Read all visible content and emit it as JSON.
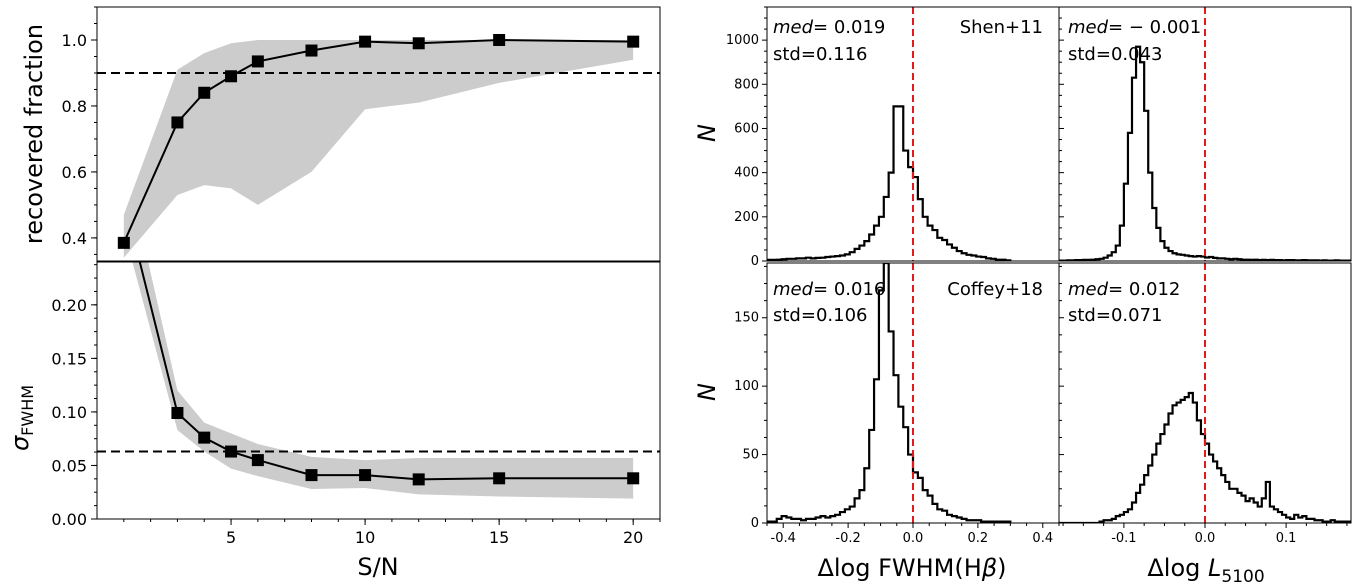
{
  "figure": {
    "left": {
      "xlabel": "S/N",
      "x_ticks": [
        "5",
        "10",
        "15",
        "20"
      ],
      "xlim": [
        0,
        21
      ],
      "top": {
        "ylabel": "recovered fraction",
        "y_ticks": [
          "0.4",
          "0.6",
          "0.8",
          "1.0"
        ],
        "ylim": [
          0.33,
          1.1
        ],
        "ref_line": 0.9
      },
      "bottom": {
        "ylabel_symbol": "σ",
        "ylabel_sub": "FWHM",
        "y_ticks": [
          "0.00",
          "0.05",
          "0.10",
          "0.15",
          "0.20"
        ],
        "ylim": [
          0.0,
          0.24
        ],
        "ref_line": 0.063
      }
    },
    "right": {
      "ylabel": "N",
      "left_col": {
        "xlabel_pre": "Δlog FWHM(H",
        "xlabel_greek": "β",
        "xlabel_post": ")",
        "x_ticks": [
          "-0.4",
          "-0.2",
          "0.0",
          "0.2",
          "0.4"
        ]
      },
      "right_col": {
        "xlabel_pre": "Δlog ",
        "xlabel_var": "L",
        "xlabel_sub": "5100",
        "x_ticks": [
          "-0.1",
          "0.0",
          "0.1"
        ]
      },
      "top_row": {
        "y_ticks": [
          "0",
          "200",
          "400",
          "600",
          "800",
          "1000"
        ],
        "tag": "Shen+11",
        "ann_left": {
          "med_label": "med",
          "med_value": "= 0.019",
          "std": "std=0.116"
        },
        "ann_right": {
          "med_label": "med",
          "med_value": "= − 0.001",
          "std": "std=0.043"
        }
      },
      "bottom_row": {
        "y_ticks": [
          "0",
          "50",
          "100",
          "150"
        ],
        "tag": "Coffey+18",
        "ann_left": {
          "med_label": "med",
          "med_value": "= 0.016",
          "std": "std=0.106"
        },
        "ann_right": {
          "med_label": "med",
          "med_value": "= 0.012",
          "std": "std=0.071"
        }
      }
    }
  },
  "chart_data": [
    {
      "type": "line",
      "title": "",
      "xlabel": "S/N",
      "ylabel": "recovered fraction",
      "xlim": [
        0,
        21
      ],
      "ylim": [
        0.33,
        1.1
      ],
      "x": [
        1,
        3,
        4,
        5,
        6,
        8,
        10,
        12,
        15,
        20
      ],
      "series": [
        {
          "values": [
            0.385,
            0.75,
            0.84,
            0.89,
            0.935,
            0.968,
            0.995,
            0.99,
            1.0,
            0.995
          ]
        }
      ],
      "band": {
        "x": [
          1,
          3,
          4,
          5,
          6,
          8,
          10,
          12,
          15,
          20
        ],
        "upper": [
          0.47,
          0.91,
          0.96,
          0.99,
          1.0,
          1.0,
          1.0,
          1.0,
          1.0,
          1.0
        ],
        "lower": [
          0.34,
          0.53,
          0.56,
          0.55,
          0.5,
          0.6,
          0.79,
          0.81,
          0.87,
          0.94
        ]
      },
      "reference_line": 0.9
    },
    {
      "type": "line",
      "title": "",
      "xlabel": "S/N",
      "ylabel": "σFWHM",
      "xlim": [
        0,
        21
      ],
      "ylim": [
        0.0,
        0.24
      ],
      "x": [
        1,
        3,
        4,
        5,
        6,
        8,
        10,
        12,
        15,
        20
      ],
      "series": [
        {
          "values": [
            0.3,
            0.099,
            0.076,
            0.063,
            0.055,
            0.041,
            0.041,
            0.037,
            0.038,
            0.038
          ]
        }
      ],
      "band": {
        "x": [
          1,
          3,
          4,
          5,
          6,
          8,
          10,
          12,
          15,
          20
        ],
        "upper": [
          0.34,
          0.12,
          0.09,
          0.08,
          0.07,
          0.058,
          0.055,
          0.057,
          0.057,
          0.057
        ],
        "lower": [
          0.27,
          0.083,
          0.063,
          0.047,
          0.04,
          0.028,
          0.029,
          0.023,
          0.021,
          0.019
        ]
      },
      "reference_line": 0.063
    },
    {
      "type": "bar",
      "title": "",
      "xlabel": "",
      "ylabel": "N",
      "xlim": [
        -0.45,
        0.45
      ],
      "ylim": [
        0,
        1150
      ],
      "bin_width": 0.015,
      "bin_start": -0.45,
      "values": [
        5,
        5,
        6,
        8,
        10,
        10,
        12,
        12,
        15,
        12,
        14,
        15,
        18,
        20,
        22,
        25,
        30,
        40,
        55,
        70,
        90,
        120,
        160,
        200,
        290,
        400,
        700,
        700,
        500,
        425,
        380,
        280,
        200,
        160,
        140,
        105,
        95,
        75,
        60,
        45,
        35,
        28,
        25,
        20,
        18,
        12,
        10,
        6,
        6,
        3
      ],
      "median_line": 0.0,
      "annotation": "Shen+11"
    },
    {
      "type": "bar",
      "title": "",
      "xlabel": "",
      "ylabel": "N",
      "xlim": [
        -0.18,
        0.18
      ],
      "ylim": [
        0,
        1150
      ],
      "bin_width": 0.005,
      "bin_start": -0.18,
      "values": [
        2,
        2,
        3,
        3,
        4,
        4,
        5,
        5,
        6,
        8,
        10,
        15,
        25,
        40,
        70,
        160,
        350,
        580,
        830,
        970,
        900,
        680,
        400,
        240,
        150,
        90,
        60,
        45,
        35,
        30,
        28,
        25,
        22,
        20,
        22,
        20,
        16,
        18,
        14,
        12,
        12,
        10,
        8,
        10,
        8,
        6,
        6,
        5,
        6,
        4,
        5,
        4,
        5,
        4,
        4,
        3,
        4,
        4,
        3,
        3,
        4,
        3,
        3,
        3,
        2,
        3,
        2,
        2,
        3,
        2,
        2,
        2
      ],
      "median_line": 0.0
    },
    {
      "type": "bar",
      "title": "",
      "xlabel": "Δlog FWHM(Hβ)",
      "ylabel": "N",
      "xlim": [
        -0.45,
        0.45
      ],
      "ylim": [
        0,
        190
      ],
      "bin_width": 0.015,
      "bin_start": -0.45,
      "values": [
        1,
        1,
        3,
        5,
        4,
        3,
        3,
        2,
        3,
        3,
        4,
        5,
        4,
        5,
        6,
        8,
        10,
        12,
        18,
        24,
        40,
        68,
        105,
        170,
        190,
        140,
        108,
        85,
        70,
        50,
        37,
        33,
        24,
        20,
        14,
        10,
        9,
        6,
        5,
        4,
        3,
        2,
        2,
        2,
        1,
        1,
        1,
        1,
        1,
        1
      ],
      "median_line": 0.0,
      "annotation": "Coffey+18"
    },
    {
      "type": "bar",
      "title": "",
      "xlabel": "Δlog L5100",
      "ylabel": "N",
      "xlim": [
        -0.18,
        0.18
      ],
      "ylim": [
        0,
        190
      ],
      "bin_width": 0.005,
      "bin_start": -0.18,
      "values": [
        0,
        0,
        0,
        0,
        0,
        0,
        0,
        0,
        0,
        0,
        1,
        2,
        2,
        3,
        5,
        6,
        8,
        10,
        15,
        22,
        28,
        35,
        42,
        50,
        58,
        65,
        72,
        80,
        86,
        88,
        90,
        92,
        95,
        88,
        75,
        65,
        58,
        50,
        45,
        40,
        35,
        30,
        25,
        25,
        22,
        20,
        16,
        18,
        15,
        12,
        18,
        30,
        12,
        10,
        8,
        6,
        4,
        3,
        6,
        4,
        5,
        3,
        3,
        2,
        2,
        1,
        1,
        2,
        1,
        1,
        1,
        1
      ],
      "median_line": 0.0
    }
  ]
}
